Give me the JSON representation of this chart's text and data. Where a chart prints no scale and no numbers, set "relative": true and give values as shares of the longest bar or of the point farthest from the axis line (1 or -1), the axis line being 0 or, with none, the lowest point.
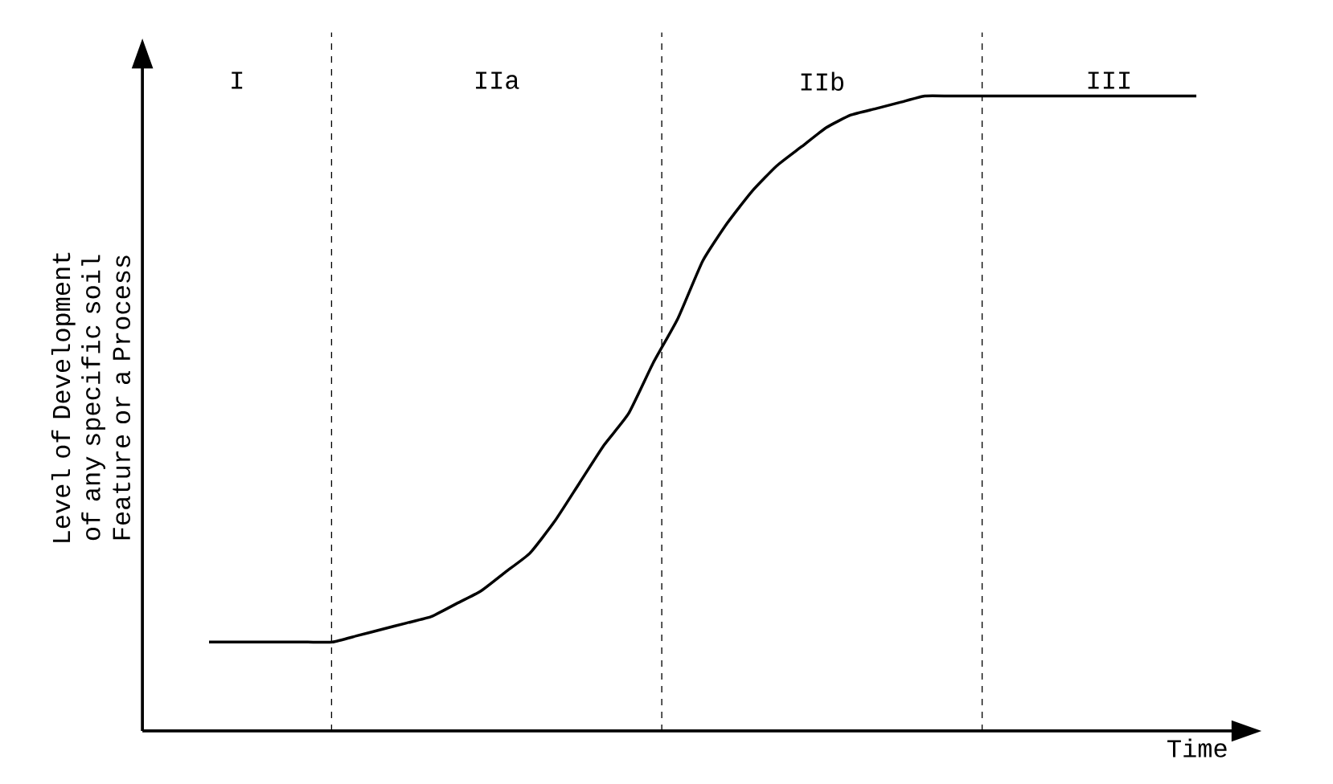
{
  "chart_data": {
    "type": "line",
    "relative": true,
    "ylabel": "Level of Development of any specific soil Feature or a Process",
    "xlabel": "Time",
    "categories": [
      null,
      null,
      null,
      null,
      null,
      null,
      null,
      null,
      null,
      null,
      null,
      null,
      null,
      null,
      null,
      null,
      null,
      null,
      null,
      null,
      null,
      null,
      null,
      null,
      null,
      null,
      null,
      null,
      null,
      null,
      null,
      null,
      null,
      null,
      null,
      null,
      null,
      null,
      null,
      null,
      null
    ],
    "series": [
      {
        "color": "#000000",
        "values": [
          0.14,
          0.14,
          0.14,
          0.14,
          0.14,
          0.14,
          0.15,
          0.16,
          0.17,
          0.18,
          0.2,
          0.22,
          0.25,
          0.28,
          0.33,
          0.39,
          0.45,
          0.5,
          0.58,
          0.65,
          0.74,
          0.8,
          0.85,
          0.89,
          0.92,
          0.95,
          0.97,
          0.98,
          0.99,
          1.0,
          1.0,
          1.0,
          1.0,
          1.0,
          1.0,
          1.0,
          1.0,
          1.0,
          1.0,
          1.0,
          1.0
        ]
      }
    ],
    "annotations": [
      "I",
      "IIa",
      "IIb",
      "III"
    ]
  }
}
